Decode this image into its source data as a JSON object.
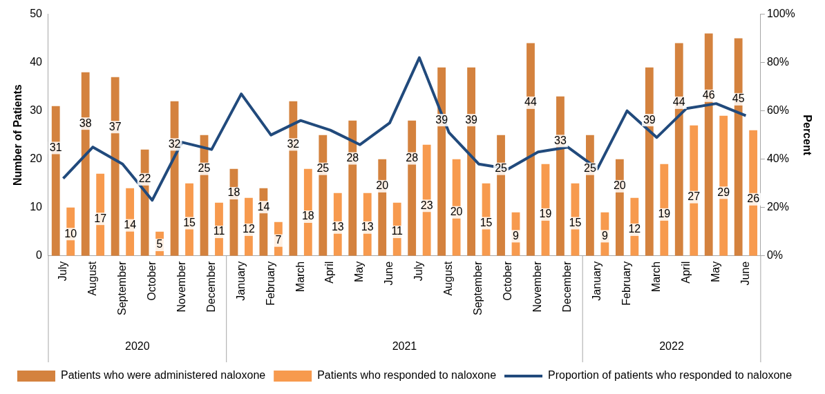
{
  "chart_data": {
    "type": "bar",
    "ylabel": "Number of Patients",
    "y2label": "Percent",
    "categories": [
      "July",
      "August",
      "September",
      "October",
      "November",
      "December",
      "January",
      "February",
      "March",
      "April",
      "May",
      "June",
      "July",
      "August",
      "September",
      "October",
      "November",
      "December",
      "January",
      "February",
      "March",
      "April",
      "May",
      "June"
    ],
    "annotations": [
      "2020",
      "2021",
      "2022"
    ],
    "series": [
      {
        "name": "Patients who were administered naloxone",
        "type": "bar",
        "color": "#d4823e",
        "values": [
          31,
          38,
          37,
          22,
          32,
          25,
          18,
          14,
          32,
          25,
          28,
          20,
          28,
          39,
          39,
          25,
          44,
          33,
          25,
          20,
          39,
          44,
          46,
          45
        ],
        "value_labels": [
          "31",
          "38",
          "37",
          "22",
          "32",
          "25",
          "18",
          "14",
          "32",
          "25",
          "28",
          "20",
          "28",
          "39",
          "39",
          "25",
          "44",
          "33",
          "25",
          "20",
          "39",
          "44",
          "46",
          "45"
        ]
      },
      {
        "name": "Patients who responded to naloxone",
        "type": "bar",
        "color": "#f79a4e",
        "values": [
          10,
          17,
          14,
          5,
          15,
          11,
          12,
          7,
          18,
          13,
          13,
          11,
          23,
          20,
          15,
          9,
          19,
          15,
          9,
          12,
          19,
          27,
          29,
          26
        ],
        "value_labels": [
          "10",
          "17",
          "14",
          "5",
          "15",
          "11",
          "12",
          "7",
          "18",
          "13",
          "13",
          "11",
          "23",
          "20",
          "15",
          "9",
          "19",
          "15",
          "9",
          "12",
          "19",
          "27",
          "29",
          "26"
        ]
      },
      {
        "name": "Proportion of patients who responded to naloxone",
        "type": "line",
        "axis": "y2",
        "color": "#214a7c",
        "values": [
          32,
          45,
          38,
          23,
          47,
          44,
          67,
          50,
          56,
          52,
          46,
          55,
          82,
          51,
          38,
          36,
          43,
          45,
          36,
          60,
          49,
          61,
          63,
          58
        ]
      }
    ],
    "ylim": [
      0,
      50
    ],
    "yticks": [
      0,
      10,
      20,
      30,
      40,
      50
    ],
    "y2lim": [
      0,
      100
    ],
    "y2ticks": [
      {
        "value": 0,
        "label": "0%"
      },
      {
        "value": 20,
        "label": "20%"
      },
      {
        "value": 40,
        "label": "40%"
      },
      {
        "value": 60,
        "label": "60%"
      },
      {
        "value": 80,
        "label": "80%"
      },
      {
        "value": 100,
        "label": "100%"
      }
    ],
    "grid": false,
    "legend": "bottom"
  }
}
